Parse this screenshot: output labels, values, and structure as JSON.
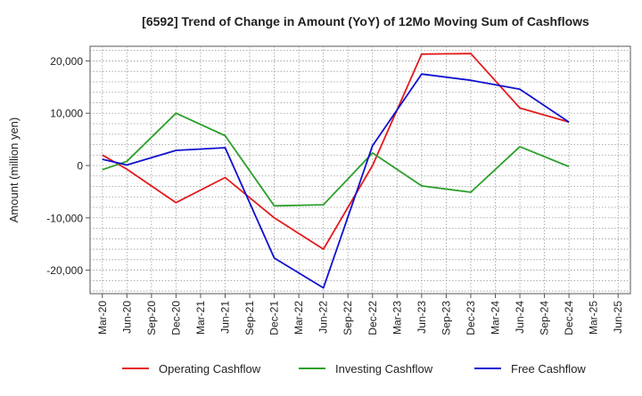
{
  "chart_data": {
    "type": "line",
    "title": "[6592]  Trend of Change in Amount (YoY) of 12Mo Moving Sum of Cashflows",
    "xlabel": "",
    "ylabel": "Amount (million yen)",
    "categories": [
      "Mar-20",
      "Jun-20",
      "Sep-20",
      "Dec-20",
      "Mar-21",
      "Jun-21",
      "Sep-21",
      "Dec-21",
      "Mar-22",
      "Jun-22",
      "Sep-22",
      "Dec-22",
      "Mar-23",
      "Jun-23",
      "Sep-23",
      "Dec-23",
      "Mar-24",
      "Jun-24",
      "Sep-24",
      "Dec-24",
      "Mar-25",
      "Jun-25"
    ],
    "ylim": [
      -24500,
      22800
    ],
    "yticks": [
      -20000,
      -10000,
      0,
      10000,
      20000
    ],
    "ytick_labels": [
      "-20,000",
      "-10,000",
      "0",
      "10,000",
      "20,000"
    ],
    "grid": true,
    "legend_position": "bottom",
    "series": [
      {
        "name": "Operating Cashflow",
        "color": "#e41a1c",
        "values": [
          2000,
          -700,
          null,
          -7100,
          null,
          -2300,
          null,
          -10000,
          null,
          -16000,
          null,
          0,
          null,
          21300,
          null,
          21400,
          null,
          11000,
          null,
          8300,
          null,
          null
        ]
      },
      {
        "name": "Investing Cashflow",
        "color": "#2ca02c",
        "values": [
          -800,
          800,
          null,
          10000,
          null,
          5700,
          null,
          -7700,
          null,
          -7500,
          null,
          2400,
          null,
          -3900,
          null,
          -5100,
          null,
          3600,
          null,
          -200,
          null,
          null
        ]
      },
      {
        "name": "Free Cashflow",
        "color": "#1010d0",
        "values": [
          1200,
          100,
          null,
          2900,
          null,
          3400,
          null,
          -17700,
          null,
          -23400,
          null,
          3800,
          null,
          17500,
          null,
          16300,
          null,
          14600,
          null,
          8300,
          null,
          null
        ]
      }
    ]
  }
}
